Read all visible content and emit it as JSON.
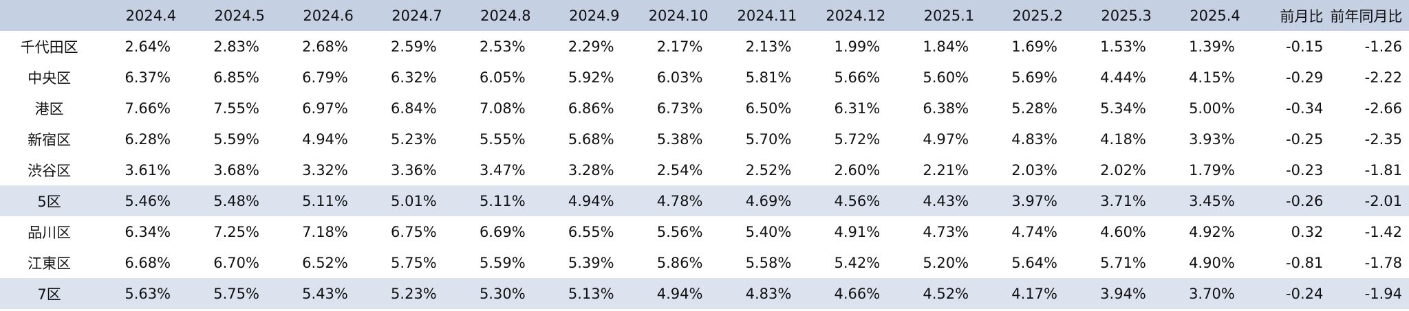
{
  "table": {
    "corner_label": "",
    "months": [
      "2024.4",
      "2024.5",
      "2024.6",
      "2024.7",
      "2024.8",
      "2024.9",
      "2024.10",
      "2024.11",
      "2024.12",
      "2025.1",
      "2025.2",
      "2025.3",
      "2025.4"
    ],
    "mom_header": "前月比",
    "yoy_header": "前年同月比",
    "rows": [
      {
        "area": "千代田区",
        "rates": [
          "2.64%",
          "2.83%",
          "2.68%",
          "2.59%",
          "2.53%",
          "2.29%",
          "2.17%",
          "2.13%",
          "1.99%",
          "1.84%",
          "1.69%",
          "1.53%",
          "1.39%"
        ],
        "mom": "-0.15",
        "yoy": "-1.26",
        "subtotal": false
      },
      {
        "area": "中央区",
        "rates": [
          "6.37%",
          "6.85%",
          "6.79%",
          "6.32%",
          "6.05%",
          "5.92%",
          "6.03%",
          "5.81%",
          "5.66%",
          "5.60%",
          "5.69%",
          "4.44%",
          "4.15%"
        ],
        "mom": "-0.29",
        "yoy": "-2.22",
        "subtotal": false
      },
      {
        "area": "港区",
        "rates": [
          "7.66%",
          "7.55%",
          "6.97%",
          "6.84%",
          "7.08%",
          "6.86%",
          "6.73%",
          "6.50%",
          "6.31%",
          "6.38%",
          "5.28%",
          "5.34%",
          "5.00%"
        ],
        "mom": "-0.34",
        "yoy": "-2.66",
        "subtotal": false
      },
      {
        "area": "新宿区",
        "rates": [
          "6.28%",
          "5.59%",
          "4.94%",
          "5.23%",
          "5.55%",
          "5.68%",
          "5.38%",
          "5.70%",
          "5.72%",
          "4.97%",
          "4.83%",
          "4.18%",
          "3.93%"
        ],
        "mom": "-0.25",
        "yoy": "-2.35",
        "subtotal": false
      },
      {
        "area": "渋谷区",
        "rates": [
          "3.61%",
          "3.68%",
          "3.32%",
          "3.36%",
          "3.47%",
          "3.28%",
          "2.54%",
          "2.52%",
          "2.60%",
          "2.21%",
          "2.03%",
          "2.02%",
          "1.79%"
        ],
        "mom": "-0.23",
        "yoy": "-1.81",
        "subtotal": false
      },
      {
        "area": "5区",
        "rates": [
          "5.46%",
          "5.48%",
          "5.11%",
          "5.01%",
          "5.11%",
          "4.94%",
          "4.78%",
          "4.69%",
          "4.56%",
          "4.43%",
          "3.97%",
          "3.71%",
          "3.45%"
        ],
        "mom": "-0.26",
        "yoy": "-2.01",
        "subtotal": true
      },
      {
        "area": "品川区",
        "rates": [
          "6.34%",
          "7.25%",
          "7.18%",
          "6.75%",
          "6.69%",
          "6.55%",
          "5.56%",
          "5.40%",
          "4.91%",
          "4.73%",
          "4.74%",
          "4.60%",
          "4.92%"
        ],
        "mom": "0.32",
        "yoy": "-1.42",
        "subtotal": false
      },
      {
        "area": "江東区",
        "rates": [
          "6.68%",
          "6.70%",
          "6.52%",
          "5.75%",
          "5.59%",
          "5.39%",
          "5.86%",
          "5.58%",
          "5.42%",
          "5.20%",
          "5.64%",
          "5.71%",
          "4.90%"
        ],
        "mom": "-0.81",
        "yoy": "-1.78",
        "subtotal": false
      },
      {
        "area": "7区",
        "rates": [
          "5.63%",
          "5.75%",
          "5.43%",
          "5.23%",
          "5.30%",
          "5.13%",
          "4.94%",
          "4.83%",
          "4.66%",
          "4.52%",
          "4.17%",
          "3.94%",
          "3.70%"
        ],
        "mom": "-0.24",
        "yoy": "-1.94",
        "subtotal": true
      }
    ]
  },
  "colors": {
    "header_background": "#c5d0e2",
    "subtotal_background": "#dce3ee",
    "body_background": "#ffffff",
    "text": "#111111"
  }
}
